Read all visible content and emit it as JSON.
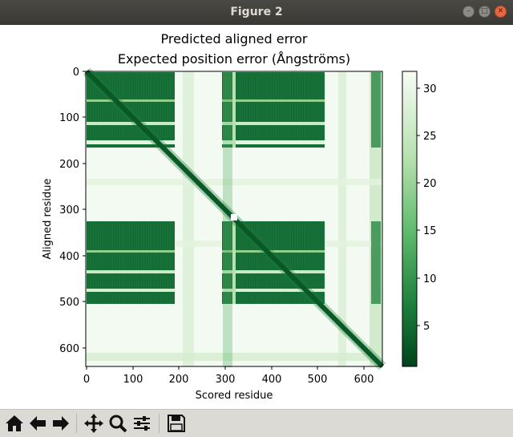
{
  "window": {
    "title": "Figure 2"
  },
  "chart_data": {
    "type": "heatmap",
    "title": "Predicted aligned error",
    "subtitle": "Expected position error (Ångströms)",
    "xlabel": "Scored residue",
    "ylabel": "Aligned residue",
    "xlim": [
      0,
      640
    ],
    "ylim": [
      640,
      0
    ],
    "x_ticks": [
      "0",
      "100",
      "200",
      "300",
      "400",
      "500",
      "600"
    ],
    "y_ticks": [
      "0",
      "100",
      "200",
      "300",
      "400",
      "500",
      "600"
    ],
    "colormap": "Greens_r",
    "colorbar_range": [
      0.5,
      31.75
    ],
    "colorbar_ticks": [
      "5",
      "10",
      "15",
      "20",
      "25",
      "30"
    ],
    "low_color": "#00441b",
    "high_color": "#f7fcf5"
  },
  "toolbar": {
    "buttons": [
      "home-icon",
      "back-arrow-icon",
      "forward-arrow-icon",
      "pan-icon",
      "zoom-icon",
      "configure-subplots-icon",
      "save-icon"
    ]
  }
}
